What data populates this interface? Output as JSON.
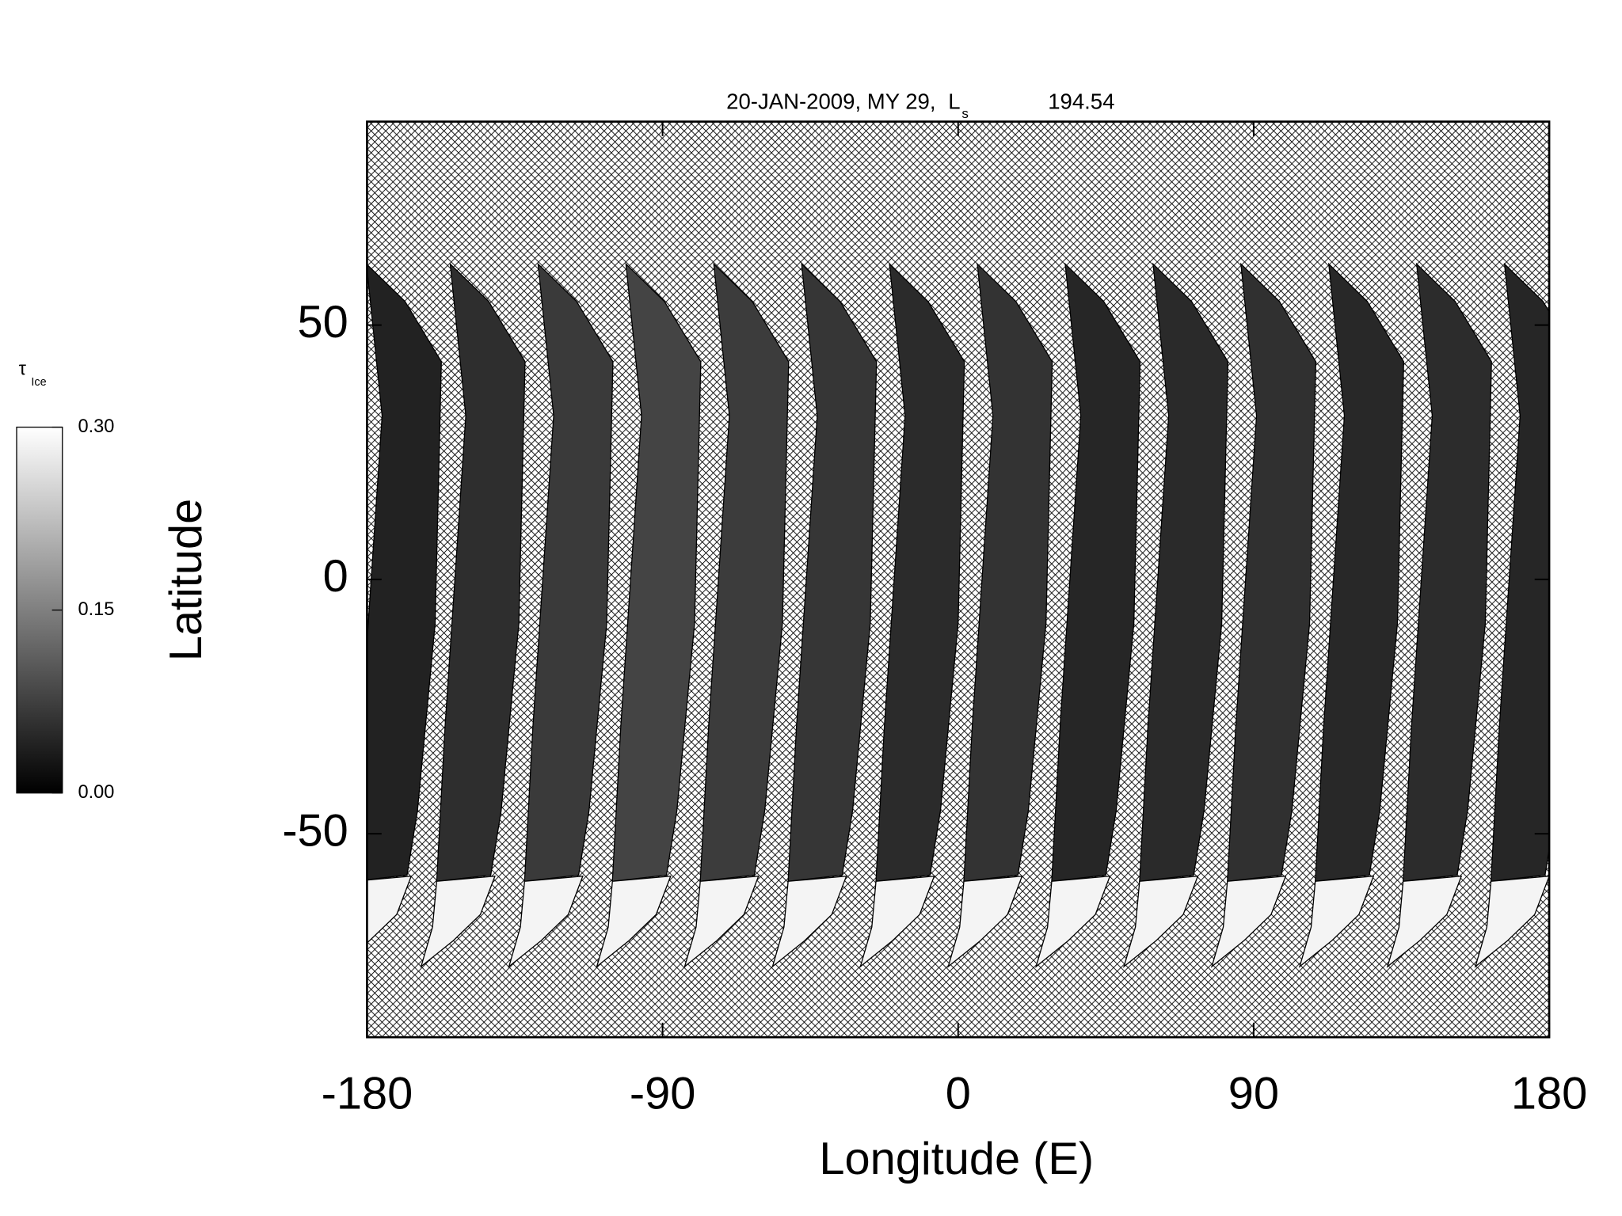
{
  "chart_data": {
    "type": "map",
    "title": "20-JAN-2009, MY 29,",
    "title_quantity": "L",
    "title_quantity_sub": "s",
    "title_value": "194.54",
    "x_label": "Longitude (E)",
    "y_label": "Latitude",
    "xlim": [
      -180,
      180
    ],
    "xticks": [
      -180,
      -90,
      0,
      90,
      180
    ],
    "ylim": [
      -90,
      90
    ],
    "yticks": [
      -50,
      0,
      50
    ],
    "colorbar": {
      "label": "τ",
      "label_sub": "Ice",
      "clim": [
        0,
        0.3
      ],
      "ticks": [
        {
          "value": 0,
          "label": "0.00"
        },
        {
          "value": 0.15,
          "label": "0.15"
        },
        {
          "value": 0.3,
          "label": "0.30"
        }
      ]
    }
  }
}
